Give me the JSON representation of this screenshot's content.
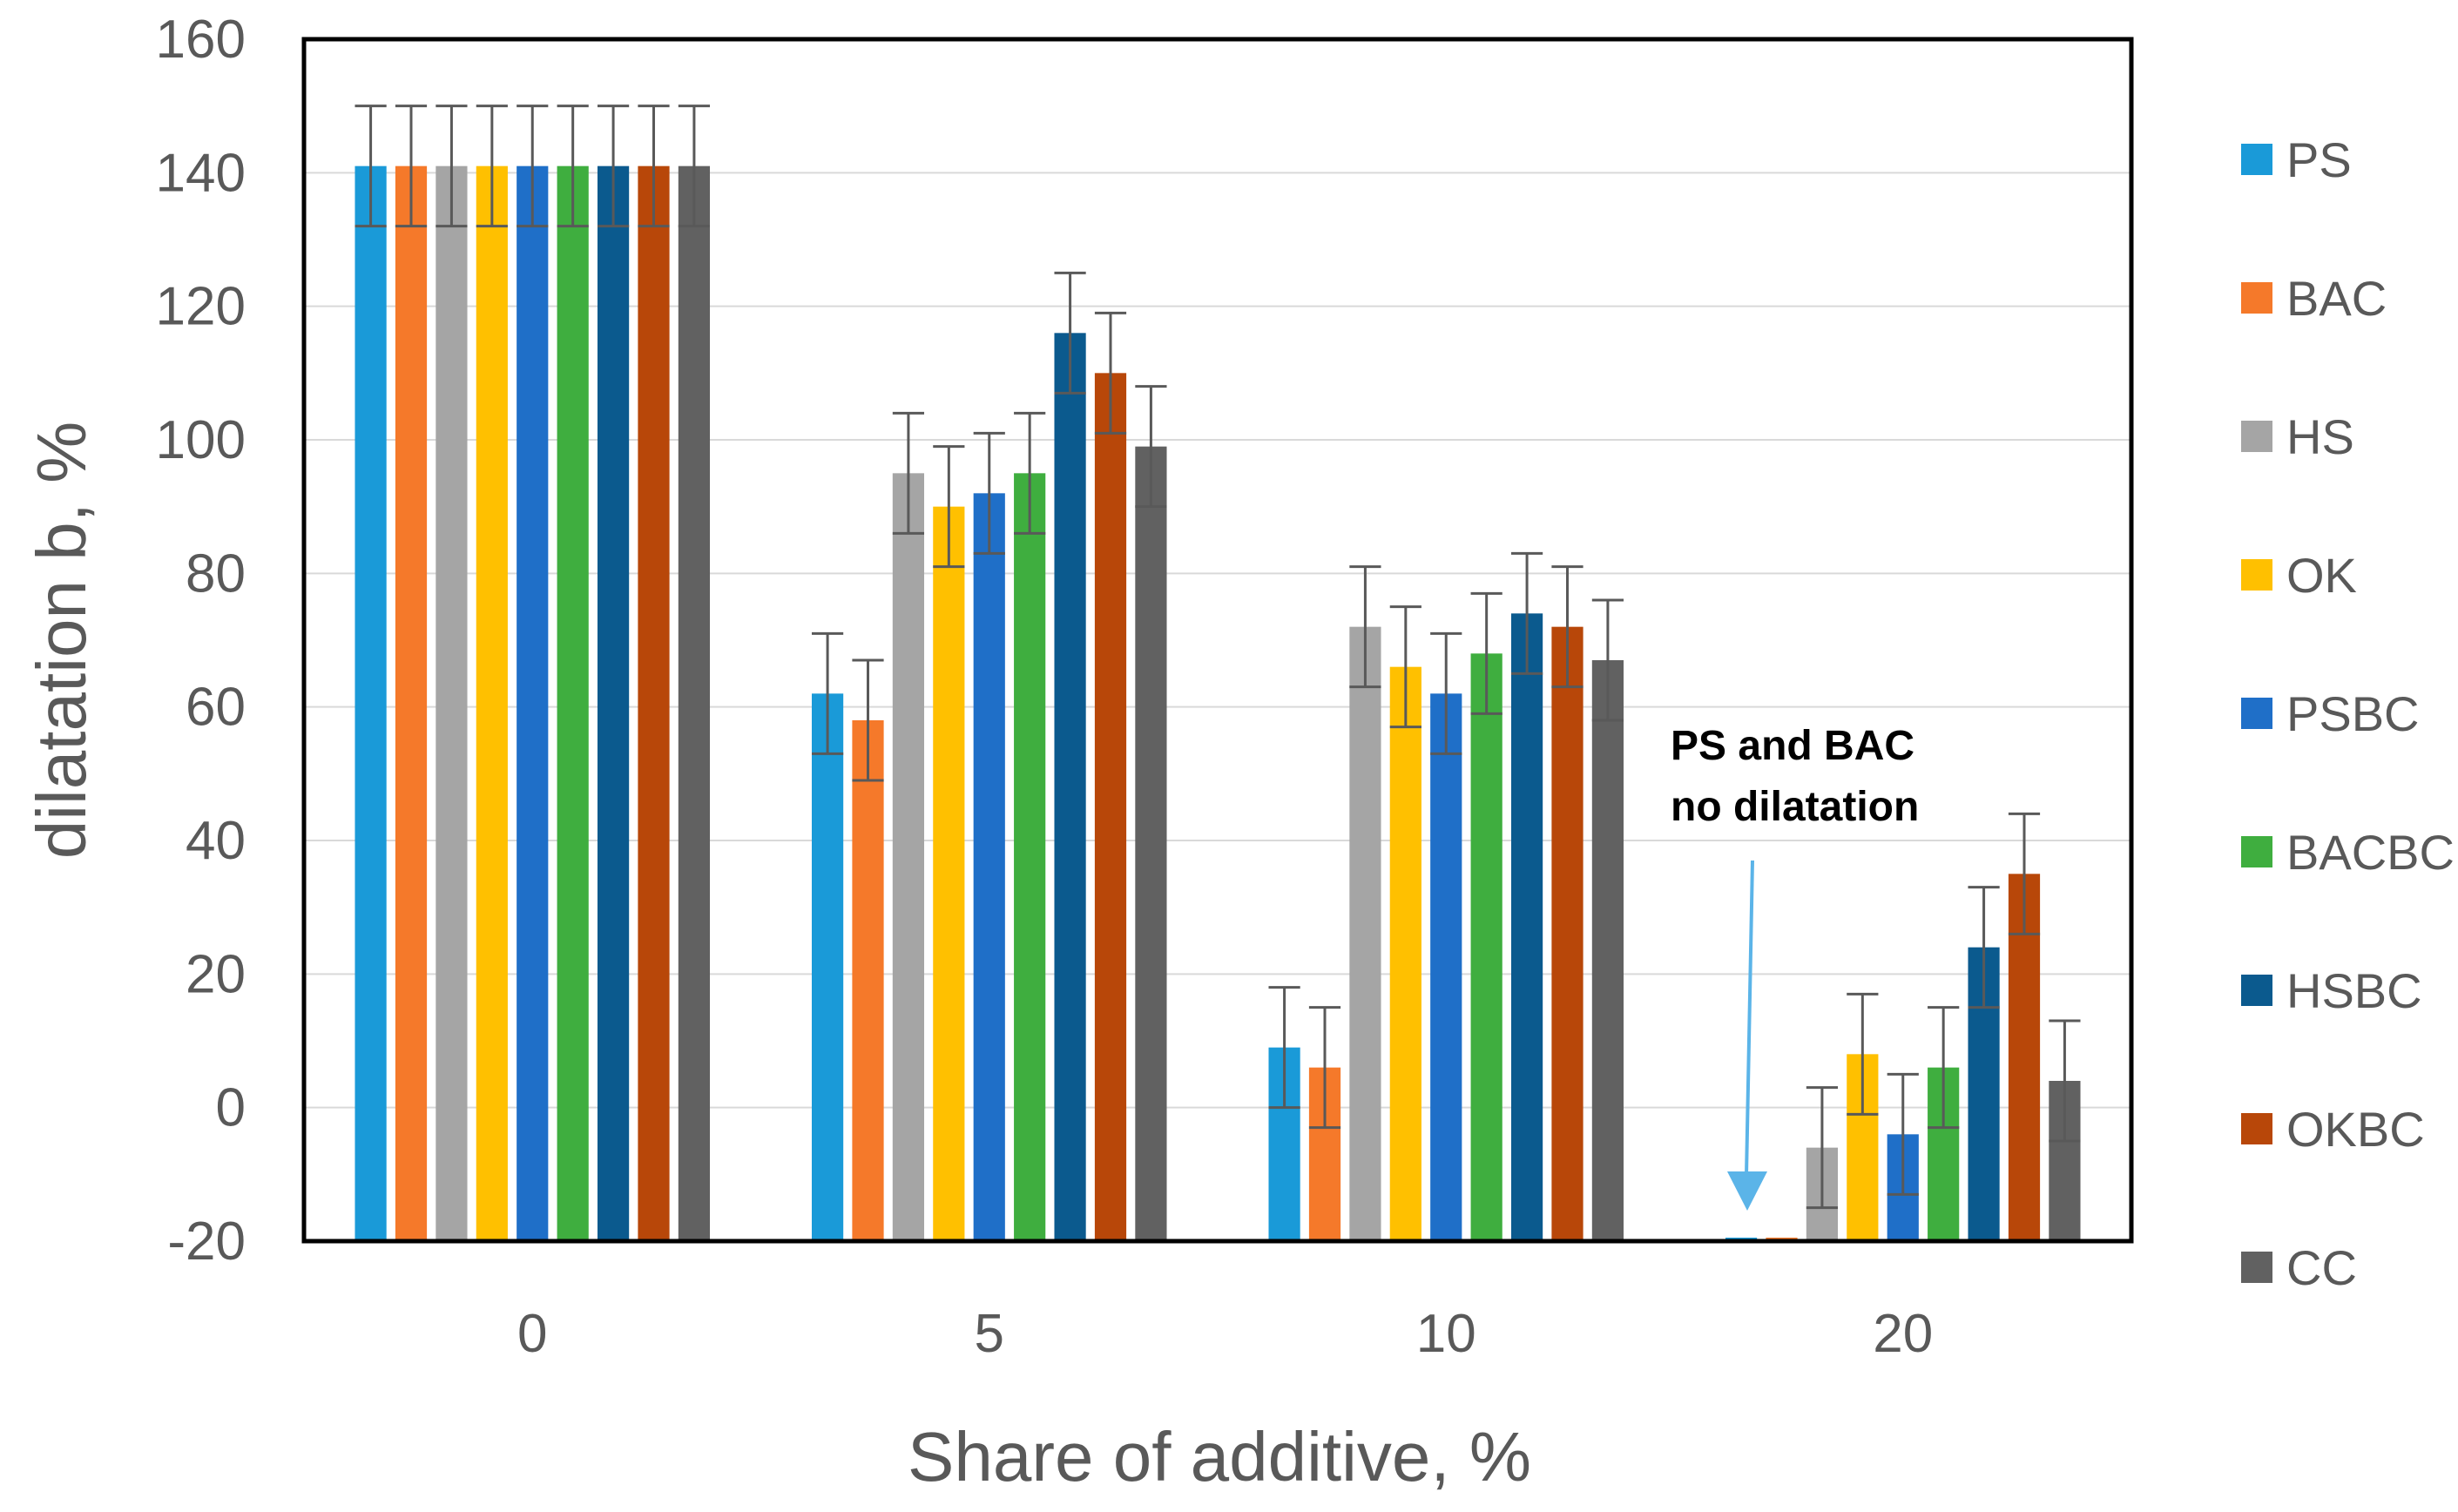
{
  "chart_data": {
    "type": "bar",
    "title": "",
    "xlabel": "Share of additive, %",
    "ylabel": "dilatation b, %",
    "ylim": [
      -20,
      160
    ],
    "yticks": [
      160,
      140,
      120,
      100,
      80,
      60,
      40,
      20,
      0,
      -20
    ],
    "categories": [
      "0",
      "5",
      "10",
      "20"
    ],
    "grid": true,
    "legend_position": "right",
    "series": [
      {
        "name": "PS",
        "color": "#1a9ad8",
        "values": [
          141,
          62,
          9,
          -20
        ],
        "errors": [
          9,
          9,
          9,
          0
        ]
      },
      {
        "name": "BAC",
        "color": "#f5792a",
        "values": [
          141,
          58,
          6,
          -20
        ],
        "errors": [
          9,
          9,
          9,
          0
        ]
      },
      {
        "name": "HS",
        "color": "#a5a5a5",
        "values": [
          141,
          95,
          72,
          -6
        ],
        "errors": [
          9,
          9,
          9,
          9
        ]
      },
      {
        "name": "OK",
        "color": "#ffc000",
        "values": [
          141,
          90,
          66,
          8
        ],
        "errors": [
          9,
          9,
          9,
          9
        ]
      },
      {
        "name": "PSBC",
        "color": "#1f6fc8",
        "values": [
          141,
          92,
          62,
          -4
        ],
        "errors": [
          9,
          9,
          9,
          9
        ]
      },
      {
        "name": "BACBC",
        "color": "#3fae3f",
        "values": [
          141,
          95,
          68,
          6
        ],
        "errors": [
          9,
          9,
          9,
          9
        ]
      },
      {
        "name": "HSBC",
        "color": "#0b5a8e",
        "values": [
          141,
          116,
          74,
          24
        ],
        "errors": [
          9,
          9,
          9,
          9
        ]
      },
      {
        "name": "OKBC",
        "color": "#b84709",
        "values": [
          141,
          110,
          72,
          35
        ],
        "errors": [
          9,
          9,
          9,
          9
        ]
      },
      {
        "name": "CC",
        "color": "#616161",
        "values": [
          141,
          99,
          67,
          4
        ],
        "errors": [
          9,
          9,
          9,
          9
        ]
      }
    ],
    "annotation": {
      "lines": [
        "PS and BAC",
        "no dilatation"
      ],
      "arrow_color": "#5bb4e8",
      "category": "20"
    }
  }
}
